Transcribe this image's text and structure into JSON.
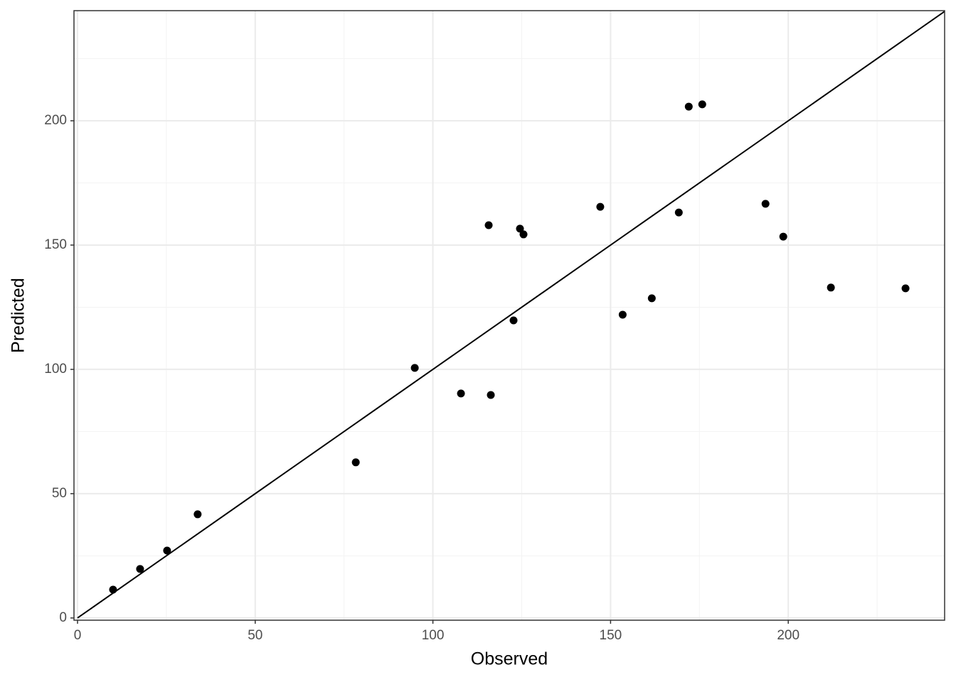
{
  "chart_data": {
    "type": "scatter",
    "x_label": "Observed",
    "y_label": "Predicted",
    "series": [
      {
        "color": "#000000",
        "x": [
          10.0,
          17.6,
          25.2,
          33.8,
          78.3,
          94.9,
          107.9,
          115.7,
          116.3,
          122.7,
          124.5,
          125.5,
          147.1,
          153.4,
          161.6,
          169.2,
          172.0,
          175.8,
          193.6,
          198.6,
          212.0,
          233.0
        ],
        "values": [
          11.4,
          19.7,
          27.1,
          41.7,
          62.6,
          100.6,
          90.3,
          158.0,
          89.7,
          119.7,
          156.6,
          154.3,
          165.4,
          122.0,
          128.6,
          163.1,
          205.7,
          206.6,
          166.6,
          153.4,
          132.9,
          132.6
        ]
      }
    ],
    "xlim": [
      -1.0,
      244.0
    ],
    "ylim": [
      -0.9,
      244.3
    ],
    "xticks": [
      0,
      50,
      100,
      150,
      200
    ],
    "yticks": [
      0,
      50,
      100,
      150,
      200
    ],
    "xminor": [
      25,
      75,
      125,
      175,
      225
    ],
    "yminor": [
      25,
      75,
      125,
      175,
      225
    ],
    "grid": true,
    "identity_line": true
  }
}
